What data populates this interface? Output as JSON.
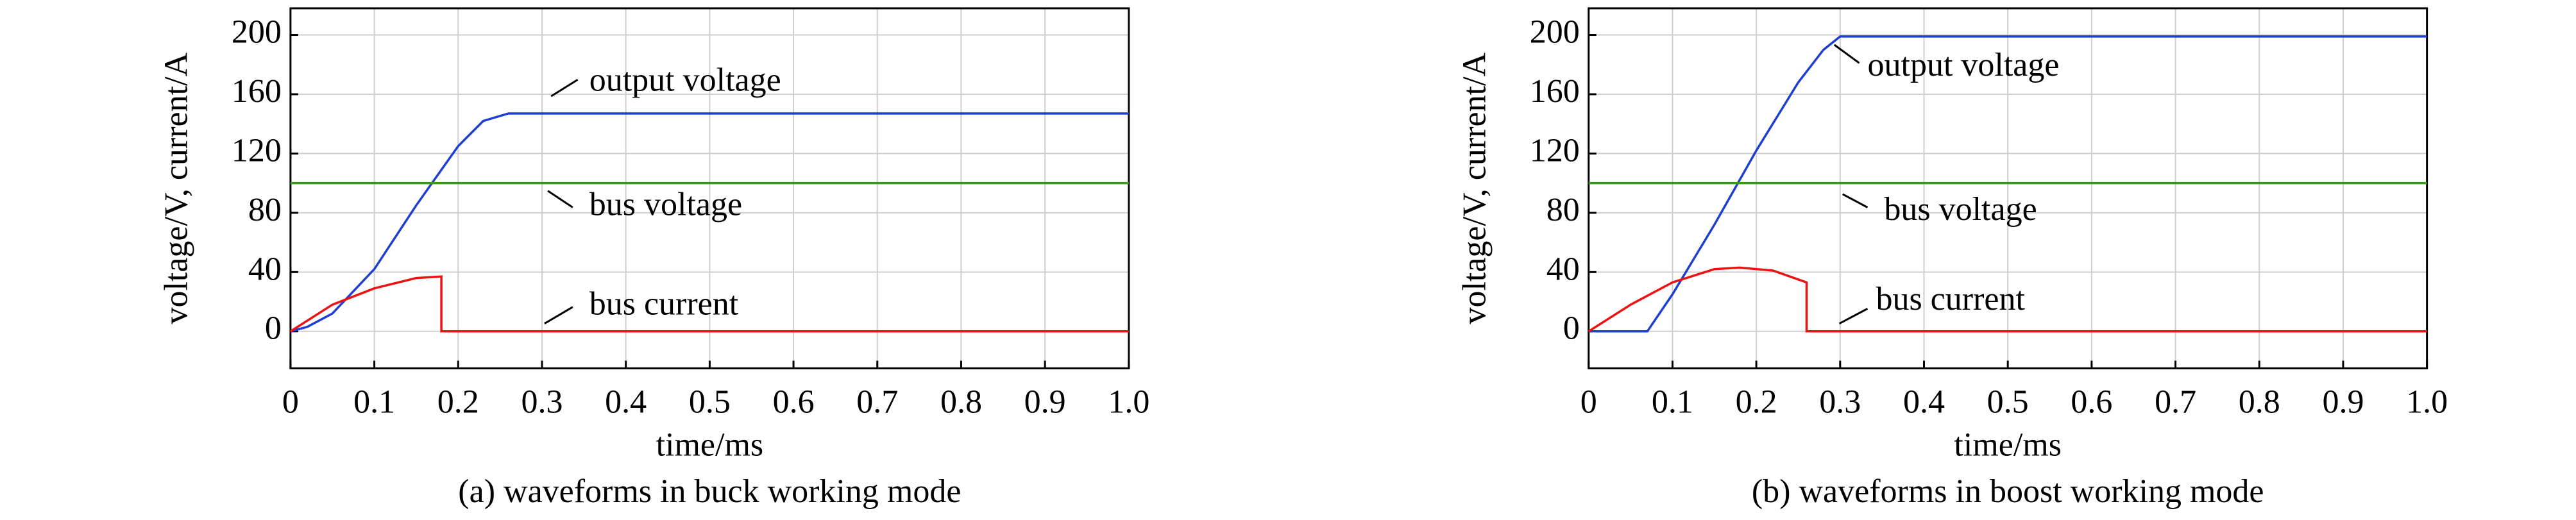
{
  "chart_data": [
    {
      "type": "line",
      "caption": "(a) waveforms in buck working mode",
      "xlabel": "time/ms",
      "ylabel": "voltage/V, current/A",
      "xlim": [
        0,
        1
      ],
      "ylim": [
        -25,
        218
      ],
      "xticks": [
        0,
        0.1,
        0.2,
        0.3,
        0.4,
        0.5,
        0.6,
        0.7,
        0.8,
        0.9,
        {
          "value": 1,
          "label": "1.0"
        }
      ],
      "yticks": [
        0,
        40,
        80,
        120,
        160,
        200
      ],
      "grid": true,
      "series": [
        {
          "name": "output voltage",
          "color": "#1f3fd0",
          "x": [
            0,
            0.02,
            0.05,
            0.1,
            0.15,
            0.2,
            0.23,
            0.26,
            1
          ],
          "values": [
            0,
            3,
            12,
            42,
            85,
            125,
            142,
            147,
            147
          ]
        },
        {
          "name": "bus voltage",
          "color": "#3a9a1a",
          "x": [
            0,
            1
          ],
          "values": [
            100,
            100
          ]
        },
        {
          "name": "bus current",
          "color": "#ee1111",
          "x": [
            0,
            0.05,
            0.1,
            0.15,
            0.18,
            0.18,
            1
          ],
          "values": [
            0,
            18,
            29,
            36,
            37,
            0,
            0
          ]
        }
      ]
    },
    {
      "type": "line",
      "caption": "(b) waveforms in boost working mode",
      "xlabel": "time/ms",
      "ylabel": "voltage/V, current/A",
      "xlim": [
        0,
        1
      ],
      "ylim": [
        -25,
        218
      ],
      "xticks": [
        0,
        0.1,
        0.2,
        0.3,
        0.4,
        0.5,
        0.6,
        0.7,
        0.8,
        0.9,
        {
          "value": 1,
          "label": "1.0"
        }
      ],
      "yticks": [
        0,
        40,
        80,
        120,
        160,
        200
      ],
      "grid": true,
      "series": [
        {
          "name": "output voltage",
          "color": "#1f3fd0",
          "x": [
            0,
            0.07,
            0.1,
            0.15,
            0.2,
            0.25,
            0.28,
            0.3,
            1
          ],
          "values": [
            0,
            0,
            25,
            72,
            122,
            168,
            190,
            199,
            199
          ]
        },
        {
          "name": "bus voltage",
          "color": "#3a9a1a",
          "x": [
            0,
            1
          ],
          "values": [
            100,
            100
          ]
        },
        {
          "name": "bus current",
          "color": "#ee1111",
          "x": [
            0,
            0.05,
            0.1,
            0.15,
            0.18,
            0.22,
            0.26,
            0.26,
            1
          ],
          "values": [
            0,
            18,
            33,
            42,
            43,
            41,
            33,
            0,
            0
          ]
        }
      ]
    }
  ]
}
